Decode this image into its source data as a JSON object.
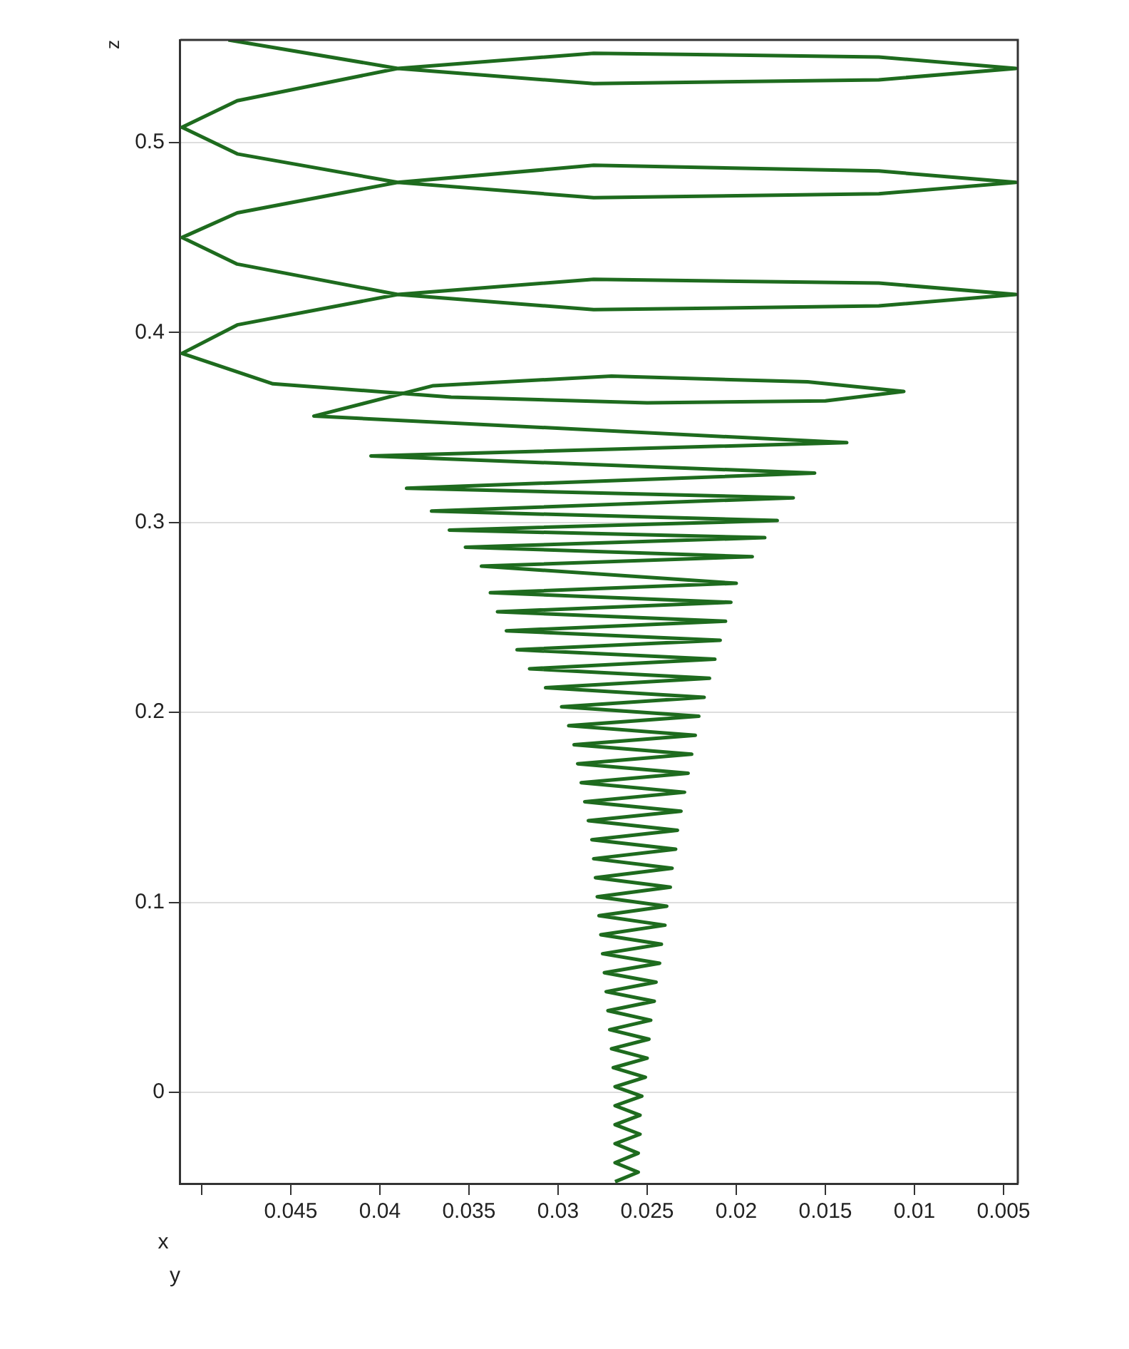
{
  "chart_data": {
    "type": "line",
    "xlabel": "y",
    "ylabel": "z",
    "annotations": [
      "x"
    ],
    "xlim": [
      0.0512,
      0.0042
    ],
    "ylim": [
      -0.048,
      0.554
    ],
    "xticks": [
      {
        "value": 0.05,
        "label": null
      },
      0.045,
      0.04,
      0.035,
      0.03,
      0.025,
      0.02,
      0.015,
      0.01,
      0.005
    ],
    "yticks": [
      0,
      0.1,
      0.2,
      0.3,
      0.4,
      0.5
    ],
    "grid": "y",
    "marker": "none",
    "line_style": "solid",
    "series": [
      {
        "color": "#1e6b1e",
        "x": [
          0.0485,
          0.039,
          0.028,
          0.012,
          0.0043,
          0.012,
          0.028,
          0.039,
          0.048,
          0.0511,
          0.048,
          0.039,
          0.028,
          0.012,
          0.0043,
          0.012,
          0.028,
          0.039,
          0.048,
          0.0511,
          0.048,
          0.039,
          0.028,
          0.012,
          0.0043,
          0.012,
          0.028,
          0.039,
          0.048,
          0.0511,
          0.046,
          0.036,
          0.025,
          0.015,
          0.0106,
          0.016,
          0.027,
          0.037,
          0.0437,
          0.0138,
          0.0405,
          0.0156,
          0.0385,
          0.0168,
          0.0371,
          0.0177,
          0.0361,
          0.0184,
          0.0352,
          0.0191,
          0.0343,
          0.02,
          0.0338,
          0.0203,
          0.0334,
          0.0206,
          0.0329,
          0.0209,
          0.0323,
          0.0212,
          0.0316,
          0.0215,
          0.0307,
          0.0218,
          0.0298,
          0.0221,
          0.0294,
          0.0223,
          0.0291,
          0.0225,
          0.0289,
          0.0227,
          0.0287,
          0.0229,
          0.0285,
          0.0231,
          0.0283,
          0.0233,
          0.0281,
          0.0234,
          0.028,
          0.0236,
          0.0279,
          0.0237,
          0.0278,
          0.0239,
          0.0277,
          0.024,
          0.0276,
          0.0242,
          0.0275,
          0.0243,
          0.0274,
          0.0245,
          0.0273,
          0.0246,
          0.0272,
          0.0248,
          0.0271,
          0.0249,
          0.027,
          0.025,
          0.0269,
          0.0251,
          0.0268,
          0.0253,
          0.0268,
          0.0254,
          0.0268,
          0.0254,
          0.0268,
          0.0255,
          0.0268,
          0.0255,
          0.0268
        ],
        "values": [
          0.554,
          0.539,
          0.531,
          0.533,
          0.539,
          0.545,
          0.547,
          0.539,
          0.522,
          0.508,
          0.494,
          0.479,
          0.471,
          0.473,
          0.479,
          0.485,
          0.488,
          0.479,
          0.463,
          0.45,
          0.436,
          0.42,
          0.412,
          0.414,
          0.42,
          0.426,
          0.428,
          0.42,
          0.404,
          0.389,
          0.373,
          0.366,
          0.363,
          0.364,
          0.369,
          0.374,
          0.377,
          0.372,
          0.356,
          0.342,
          0.335,
          0.326,
          0.318,
          0.313,
          0.306,
          0.301,
          0.296,
          0.292,
          0.287,
          0.282,
          0.277,
          0.268,
          0.263,
          0.258,
          0.253,
          0.248,
          0.243,
          0.238,
          0.233,
          0.228,
          0.223,
          0.218,
          0.213,
          0.208,
          0.203,
          0.198,
          0.193,
          0.188,
          0.183,
          0.178,
          0.173,
          0.168,
          0.163,
          0.158,
          0.153,
          0.148,
          0.143,
          0.138,
          0.133,
          0.128,
          0.123,
          0.118,
          0.113,
          0.108,
          0.103,
          0.098,
          0.093,
          0.088,
          0.083,
          0.078,
          0.073,
          0.068,
          0.063,
          0.058,
          0.053,
          0.048,
          0.043,
          0.038,
          0.033,
          0.028,
          0.023,
          0.018,
          0.013,
          0.008,
          0.003,
          -0.002,
          -0.007,
          -0.012,
          -0.017,
          -0.022,
          -0.027,
          -0.032,
          -0.037,
          -0.042,
          -0.047
        ]
      }
    ]
  }
}
